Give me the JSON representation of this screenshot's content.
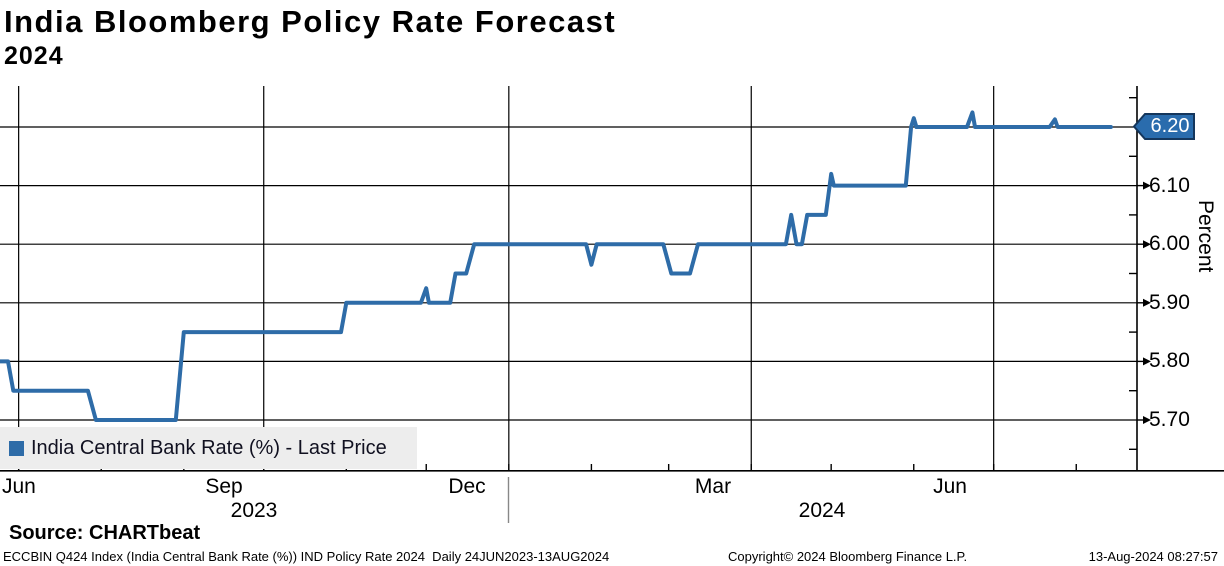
{
  "title": "India Bloomberg Policy Rate Forecast",
  "subtitle": "2024",
  "legend": {
    "label": "India Central Bank Rate (%) - Last Price",
    "marker_color": "#2e6ca8"
  },
  "last_price_tag": {
    "value": "6.20",
    "bg": "#2a6cad",
    "border": "#14365c",
    "text_color": "#ffffff"
  },
  "source_line": "Source: CHARTbeat",
  "footer": {
    "left": "ECCBIN Q424 Index (India Central Bank Rate (%)) IND Policy Rate 2024  Daily 24JUN2023-13AUG2024",
    "copyright": "Copyright© 2024 Bloomberg Finance L.P.",
    "timestamp": "13-Aug-2024 08:27:57"
  },
  "chart_data": {
    "type": "line",
    "title": "India Bloomberg Policy Rate Forecast 2024",
    "xlabel": "",
    "ylabel": "Percent",
    "ylim": [
      5.615,
      6.265
    ],
    "grid": true,
    "legend_position": "bottom-left",
    "x_range": {
      "start": "24JUN2023",
      "end": "13AUG2024",
      "frequency": "Daily"
    },
    "yticks_major": [
      6.2,
      6.1,
      6.0,
      5.9,
      5.8,
      5.7
    ],
    "ytick_labels": [
      "6.10",
      "6.00",
      "5.90",
      "5.80",
      "5.70"
    ],
    "yticks_minor": [
      6.25,
      6.15,
      6.05,
      5.95,
      5.85,
      5.75,
      5.65
    ],
    "month_labels": [
      "Jun",
      "Sep",
      "Dec",
      "Mar",
      "Jun"
    ],
    "year_labels": [
      "2023",
      "2024"
    ],
    "gridline_color": "#000000",
    "last_value": 6.2,
    "series": [
      {
        "name": "India Central Bank Rate (%) - Last Price",
        "color": "#2e6ca8",
        "points_day_value": [
          [
            0,
            5.8
          ],
          [
            3,
            5.8
          ],
          [
            5,
            5.75
          ],
          [
            33,
            5.75
          ],
          [
            36,
            5.7
          ],
          [
            66,
            5.7
          ],
          [
            69,
            5.85
          ],
          [
            128,
            5.85
          ],
          [
            130,
            5.9
          ],
          [
            158,
            5.9
          ],
          [
            160,
            5.925
          ],
          [
            161,
            5.9
          ],
          [
            169,
            5.9
          ],
          [
            171,
            5.95
          ],
          [
            175,
            5.95
          ],
          [
            178,
            6.0
          ],
          [
            220,
            6.0
          ],
          [
            222,
            5.965
          ],
          [
            224,
            6.0
          ],
          [
            249,
            6.0
          ],
          [
            252,
            5.95
          ],
          [
            259,
            5.95
          ],
          [
            262,
            6.0
          ],
          [
            295,
            6.0
          ],
          [
            297,
            6.05
          ],
          [
            299,
            6.0
          ],
          [
            301,
            6.0
          ],
          [
            303,
            6.05
          ],
          [
            310,
            6.05
          ],
          [
            312,
            6.12
          ],
          [
            313,
            6.1
          ],
          [
            340,
            6.1
          ],
          [
            342,
            6.2
          ],
          [
            343,
            6.215
          ],
          [
            344,
            6.2
          ],
          [
            363,
            6.2
          ],
          [
            365,
            6.225
          ],
          [
            366,
            6.2
          ],
          [
            394,
            6.2
          ],
          [
            396,
            6.213
          ],
          [
            397,
            6.2
          ],
          [
            417,
            6.2
          ]
        ]
      }
    ]
  }
}
